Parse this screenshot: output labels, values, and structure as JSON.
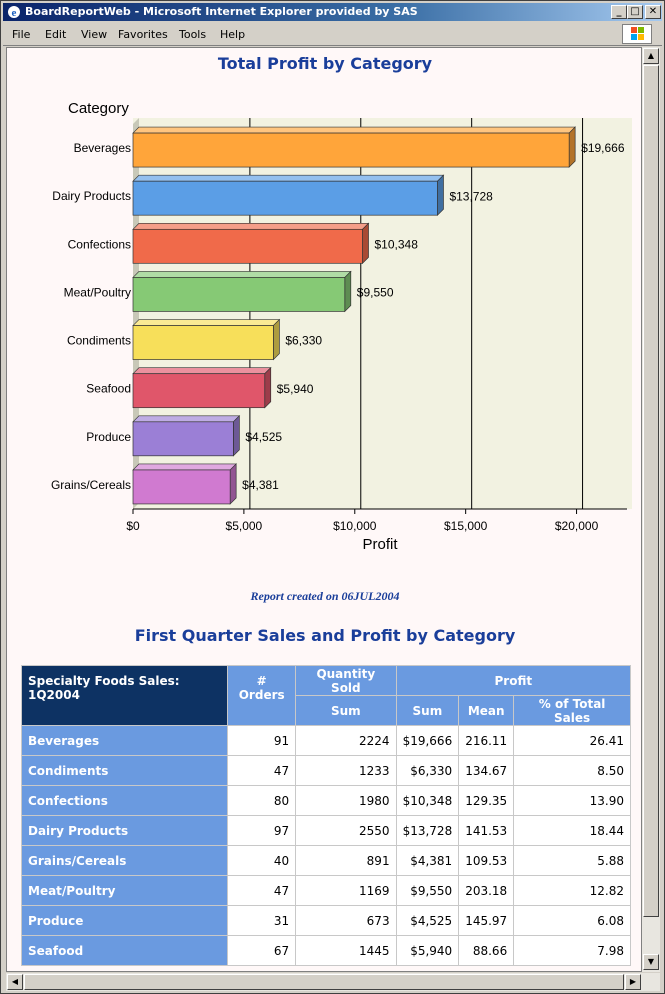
{
  "window": {
    "title": "BoardReportWeb - Microsoft Internet Explorer provided by SAS",
    "minimize": "_",
    "maximize": "□",
    "close": "✕"
  },
  "menu": [
    "File",
    "Edit",
    "View",
    "Favorites",
    "Tools",
    "Help"
  ],
  "report": {
    "chart_title": "Total Profit by Category",
    "created": "Report created on 06JUL2004",
    "table_title": "First Quarter Sales and Profit by Category"
  },
  "chart_data": {
    "type": "bar",
    "orientation": "horizontal",
    "title": "Total Profit by Category",
    "ylabel": "Category",
    "xlabel": "Profit",
    "categories": [
      "Beverages",
      "Dairy Products",
      "Confections",
      "Meat/Poultry",
      "Condiments",
      "Seafood",
      "Produce",
      "Grains/Cereals"
    ],
    "values": [
      19666,
      13728,
      10348,
      9550,
      6330,
      5940,
      4525,
      4381
    ],
    "value_labels": [
      "$19,666",
      "$13,728",
      "$10,348",
      "$9,550",
      "$6,330",
      "$5,940",
      "$4,525",
      "$4,381"
    ],
    "colors": [
      "#ffa53a",
      "#5b9ee6",
      "#f06a4a",
      "#86c975",
      "#f7df5a",
      "#e0566a",
      "#9b7fd6",
      "#d07ad0"
    ],
    "xlim": [
      0,
      22500
    ],
    "xticks": [
      0,
      5000,
      10000,
      15000,
      20000
    ],
    "xtick_labels": [
      "$0",
      "$5,000",
      "$10,000",
      "$15,000",
      "$20,000"
    ],
    "grid": true,
    "legend": "none"
  },
  "table": {
    "corner": "Specialty Foods Sales: 1Q2004",
    "h_orders": "# Orders",
    "h_qty": "Quantity Sold",
    "h_profit": "Profit",
    "h_qty_sum": "Sum",
    "h_profit_sum": "Sum",
    "h_profit_mean": "Mean",
    "h_profit_pct": "% of Total Sales",
    "rows": [
      {
        "category": "Beverages",
        "orders": "91",
        "qty": "2224",
        "sum": "$19,666",
        "mean": "216.11",
        "pct": "26.41"
      },
      {
        "category": "Condiments",
        "orders": "47",
        "qty": "1233",
        "sum": "$6,330",
        "mean": "134.67",
        "pct": "8.50"
      },
      {
        "category": "Confections",
        "orders": "80",
        "qty": "1980",
        "sum": "$10,348",
        "mean": "129.35",
        "pct": "13.90"
      },
      {
        "category": "Dairy Products",
        "orders": "97",
        "qty": "2550",
        "sum": "$13,728",
        "mean": "141.53",
        "pct": "18.44"
      },
      {
        "category": "Grains/Cereals",
        "orders": "40",
        "qty": "891",
        "sum": "$4,381",
        "mean": "109.53",
        "pct": "5.88"
      },
      {
        "category": "Meat/Poultry",
        "orders": "47",
        "qty": "1169",
        "sum": "$9,550",
        "mean": "203.18",
        "pct": "12.82"
      },
      {
        "category": "Produce",
        "orders": "31",
        "qty": "673",
        "sum": "$4,525",
        "mean": "145.97",
        "pct": "6.08"
      },
      {
        "category": "Seafood",
        "orders": "67",
        "qty": "1445",
        "sum": "$5,940",
        "mean": "88.66",
        "pct": "7.98"
      }
    ]
  }
}
